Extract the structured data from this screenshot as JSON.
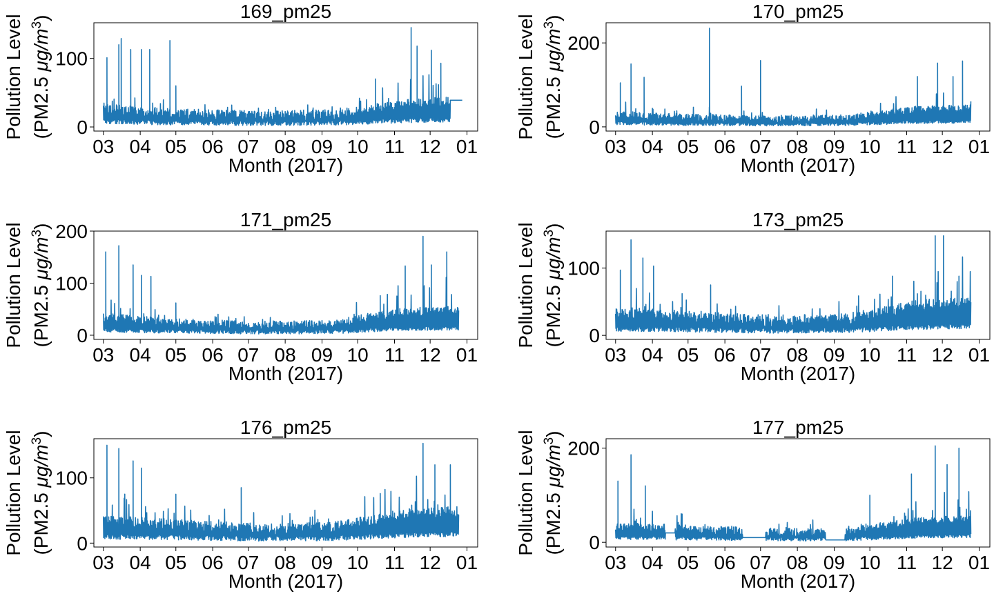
{
  "figure": {
    "ylabel_line1": "Pollution Level",
    "ylabel_line2_prefix": "(PM2.5 ",
    "ylabel_line2_unit": "μg/m",
    "ylabel_line2_sup": "3",
    "ylabel_line2_suffix": ")",
    "xlabel": "Month (2017)",
    "xticks": [
      "03",
      "04",
      "05",
      "06",
      "07",
      "08",
      "09",
      "10",
      "11",
      "12",
      "01"
    ],
    "line_color": "#1f77b4"
  },
  "chart_data": [
    {
      "type": "line",
      "title": "169_pm25",
      "xlabel": "Month (2017)",
      "ylabel": "Pollution Level (PM2.5 μg/m3)",
      "xlim": [
        "2017-02-21",
        "2018-01-10"
      ],
      "ylim": [
        -6,
        152
      ],
      "yticks": [
        0,
        100
      ],
      "sampling": "approximate daily max/min envelope",
      "data_start": "2017-03-01",
      "data_end": "2017-12-28",
      "baseline": 15,
      "noise": 7,
      "seasonal": [
        [
          0.0,
          18
        ],
        [
          0.18,
          12
        ],
        [
          0.45,
          8
        ],
        [
          0.65,
          10
        ],
        [
          0.75,
          18
        ],
        [
          0.85,
          25
        ],
        [
          1.0,
          30
        ]
      ],
      "spikes": [
        {
          "x": "2017-03-04",
          "y": 101
        },
        {
          "x": "2017-03-14",
          "y": 120
        },
        {
          "x": "2017-03-16",
          "y": 129
        },
        {
          "x": "2017-03-24",
          "y": 113
        },
        {
          "x": "2017-04-02",
          "y": 113
        },
        {
          "x": "2017-04-09",
          "y": 113
        },
        {
          "x": "2017-04-26",
          "y": 126
        },
        {
          "x": "2017-05-01",
          "y": 60
        },
        {
          "x": "2017-10-16",
          "y": 70
        },
        {
          "x": "2017-11-15",
          "y": 145
        },
        {
          "x": "2017-11-20",
          "y": 118
        },
        {
          "x": "2017-12-02",
          "y": 112
        },
        {
          "x": "2017-12-10",
          "y": 93
        }
      ],
      "flat_segment": {
        "start": "2017-12-18",
        "end": "2017-12-28",
        "y": 39
      }
    },
    {
      "type": "line",
      "title": "170_pm25",
      "xlabel": "Month (2017)",
      "ylabel": "Pollution Level (PM2.5 μg/m3)",
      "xlim": [
        "2017-02-21",
        "2018-01-10"
      ],
      "ylim": [
        -10,
        248
      ],
      "yticks": [
        0,
        200
      ],
      "sampling": "approximate daily max/min envelope",
      "data_start": "2017-03-01",
      "data_end": "2017-12-25",
      "baseline": 16,
      "noise": 8,
      "seasonal": [
        [
          0.0,
          20
        ],
        [
          0.18,
          14
        ],
        [
          0.45,
          9
        ],
        [
          0.65,
          11
        ],
        [
          0.75,
          22
        ],
        [
          0.85,
          32
        ],
        [
          1.0,
          35
        ]
      ],
      "spikes": [
        {
          "x": "2017-03-05",
          "y": 105
        },
        {
          "x": "2017-03-14",
          "y": 150
        },
        {
          "x": "2017-03-25",
          "y": 118
        },
        {
          "x": "2017-05-19",
          "y": 235
        },
        {
          "x": "2017-06-15",
          "y": 97
        },
        {
          "x": "2017-07-01",
          "y": 158
        },
        {
          "x": "2017-11-10",
          "y": 120
        },
        {
          "x": "2017-11-27",
          "y": 152
        },
        {
          "x": "2017-12-10",
          "y": 120
        },
        {
          "x": "2017-12-18",
          "y": 157
        }
      ]
    },
    {
      "type": "line",
      "title": "171_pm25",
      "xlabel": "Month (2017)",
      "ylabel": "Pollution Level (PM2.5 μg/m3)",
      "xlim": [
        "2017-02-21",
        "2018-01-10"
      ],
      "ylim": [
        -8,
        200
      ],
      "yticks": [
        0,
        100,
        200
      ],
      "sampling": "approximate daily max/min envelope",
      "data_start": "2017-03-01",
      "data_end": "2017-12-25",
      "baseline": 18,
      "noise": 8,
      "seasonal": [
        [
          0.0,
          25
        ],
        [
          0.18,
          15
        ],
        [
          0.45,
          9
        ],
        [
          0.65,
          12
        ],
        [
          0.75,
          25
        ],
        [
          0.85,
          35
        ],
        [
          1.0,
          40
        ]
      ],
      "spikes": [
        {
          "x": "2017-03-03",
          "y": 160
        },
        {
          "x": "2017-03-14",
          "y": 172
        },
        {
          "x": "2017-03-26",
          "y": 135
        },
        {
          "x": "2017-04-02",
          "y": 115
        },
        {
          "x": "2017-04-10",
          "y": 113
        },
        {
          "x": "2017-05-01",
          "y": 62
        },
        {
          "x": "2017-10-20",
          "y": 76
        },
        {
          "x": "2017-11-10",
          "y": 133
        },
        {
          "x": "2017-11-25",
          "y": 190
        },
        {
          "x": "2017-12-02",
          "y": 135
        },
        {
          "x": "2017-12-15",
          "y": 160
        }
      ]
    },
    {
      "type": "line",
      "title": "173_pm25",
      "xlabel": "Month (2017)",
      "ylabel": "Pollution Level (PM2.5 μg/m3)",
      "xlim": [
        "2017-02-21",
        "2018-01-10"
      ],
      "ylim": [
        -6,
        155
      ],
      "yticks": [
        0,
        100
      ],
      "sampling": "approximate daily max/min envelope",
      "data_start": "2017-03-01",
      "data_end": "2017-12-25",
      "baseline": 18,
      "noise": 8,
      "seasonal": [
        [
          0.0,
          25
        ],
        [
          0.18,
          20
        ],
        [
          0.45,
          12
        ],
        [
          0.65,
          15
        ],
        [
          0.75,
          25
        ],
        [
          0.85,
          35
        ],
        [
          1.0,
          40
        ]
      ],
      "spikes": [
        {
          "x": "2017-03-05",
          "y": 97
        },
        {
          "x": "2017-03-14",
          "y": 142
        },
        {
          "x": "2017-03-24",
          "y": 115
        },
        {
          "x": "2017-04-02",
          "y": 103
        },
        {
          "x": "2017-04-26",
          "y": 62
        },
        {
          "x": "2017-05-20",
          "y": 75
        },
        {
          "x": "2017-10-20",
          "y": 88
        },
        {
          "x": "2017-11-25",
          "y": 148
        },
        {
          "x": "2017-12-02",
          "y": 148
        },
        {
          "x": "2017-12-15",
          "y": 88
        }
      ]
    },
    {
      "type": "line",
      "title": "176_pm25",
      "xlabel": "Month (2017)",
      "ylabel": "Pollution Level (PM2.5 μg/m3)",
      "xlim": [
        "2017-02-21",
        "2018-01-10"
      ],
      "ylim": [
        -6,
        160
      ],
      "yticks": [
        0,
        100
      ],
      "sampling": "approximate daily max/min envelope",
      "data_start": "2017-03-01",
      "data_end": "2017-12-25",
      "baseline": 20,
      "noise": 8,
      "seasonal": [
        [
          0.0,
          25
        ],
        [
          0.18,
          20
        ],
        [
          0.45,
          12
        ],
        [
          0.65,
          15
        ],
        [
          0.75,
          25
        ],
        [
          0.85,
          35
        ],
        [
          1.0,
          40
        ]
      ],
      "spikes": [
        {
          "x": "2017-03-04",
          "y": 150
        },
        {
          "x": "2017-03-14",
          "y": 145
        },
        {
          "x": "2017-03-26",
          "y": 126
        },
        {
          "x": "2017-04-02",
          "y": 115
        },
        {
          "x": "2017-05-01",
          "y": 75
        },
        {
          "x": "2017-06-25",
          "y": 85
        },
        {
          "x": "2017-10-20",
          "y": 76
        },
        {
          "x": "2017-11-25",
          "y": 153
        },
        {
          "x": "2017-12-05",
          "y": 120
        },
        {
          "x": "2017-12-18",
          "y": 120
        }
      ]
    },
    {
      "type": "line",
      "title": "177_pm25",
      "xlabel": "Month (2017)",
      "ylabel": "Pollution Level (PM2.5 μg/m3)",
      "xlim": [
        "2017-02-21",
        "2018-01-10"
      ],
      "ylim": [
        -10,
        220
      ],
      "yticks": [
        0,
        200
      ],
      "sampling": "approximate daily max/min envelope",
      "data_start": "2017-03-01",
      "data_end": "2017-12-25",
      "baseline": 18,
      "noise": 8,
      "seasonal": [
        [
          0.0,
          25
        ],
        [
          0.18,
          20
        ],
        [
          0.45,
          12
        ],
        [
          0.65,
          12
        ],
        [
          0.75,
          25
        ],
        [
          0.85,
          35
        ],
        [
          1.0,
          40
        ]
      ],
      "spikes": [
        {
          "x": "2017-03-03",
          "y": 130
        },
        {
          "x": "2017-03-14",
          "y": 186
        },
        {
          "x": "2017-03-26",
          "y": 120
        },
        {
          "x": "2017-04-26",
          "y": 60
        },
        {
          "x": "2017-10-01",
          "y": 100
        },
        {
          "x": "2017-11-05",
          "y": 145
        },
        {
          "x": "2017-11-25",
          "y": 205
        },
        {
          "x": "2017-12-05",
          "y": 165
        },
        {
          "x": "2017-12-15",
          "y": 200
        }
      ],
      "flat_segments": [
        {
          "start": "2017-04-12",
          "end": "2017-04-20",
          "y": 20
        },
        {
          "start": "2017-06-16",
          "end": "2017-07-05",
          "y": 10
        },
        {
          "start": "2017-08-25",
          "end": "2017-09-10",
          "y": 5
        }
      ]
    }
  ]
}
